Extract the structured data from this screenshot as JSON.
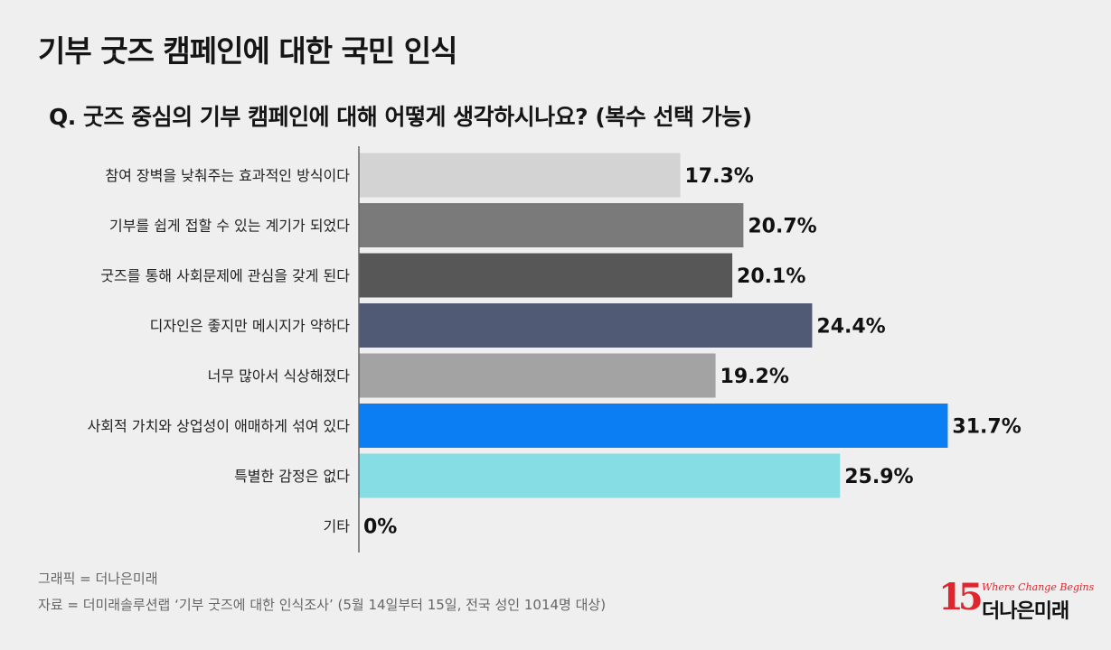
{
  "title": "기부 굿즈 캠페인에 대한 국민 인식",
  "question": "Q. 굿즈 중심의 기부 캠페인에 대해 어떻게 생각하시나요? (복수 선택 가능)",
  "footnotes": {
    "graphic": "그래픽 = 더나은미래",
    "source": "자료 = 더미래솔루션랩 ‘기부 굿즈에 대한 인식조사’ (5월 14일부터 15일, 전국 성인 1014명 대상)"
  },
  "logo": {
    "number": "15",
    "tagline": "Where Change Begins",
    "name": "더나은미래"
  },
  "chart_data": {
    "type": "bar",
    "orientation": "horizontal",
    "categories": [
      "참여 장벽을 낮춰주는 효과적인 방식이다",
      "기부를 쉽게 접할 수 있는 계기가 되었다",
      "굿즈를 통해 사회문제에 관심을 갖게 된다",
      "디자인은 좋지만 메시지가 약하다",
      "너무 많아서 식상해졌다",
      "사회적 가치와 상업성이 애매하게 섞여 있다",
      "특별한 감정은 없다",
      "기타"
    ],
    "values": [
      17.3,
      20.7,
      20.1,
      24.4,
      19.2,
      31.7,
      25.9,
      0
    ],
    "value_labels": [
      "17.3%",
      "20.7%",
      "20.1%",
      "24.4%",
      "19.2%",
      "31.7%",
      "25.9%",
      "0%"
    ],
    "colors": [
      "#d3d3d3",
      "#7a7a7a",
      "#575757",
      "#515a74",
      "#a3a3a3",
      "#0a7ef2",
      "#86dde3",
      "#9a9a9a"
    ],
    "xlim": [
      0,
      100
    ],
    "grid": false,
    "legend": "none"
  }
}
